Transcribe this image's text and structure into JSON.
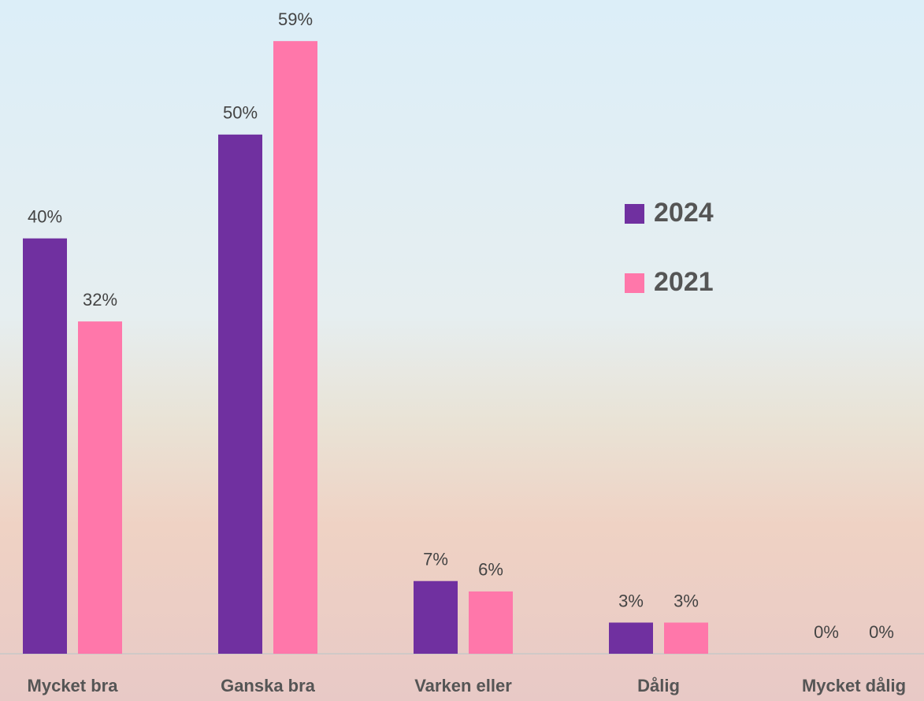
{
  "chart_data": {
    "type": "bar",
    "categories": [
      "Mycket bra",
      "Ganska bra",
      "Varken eller",
      "Dålig",
      "Mycket dålig"
    ],
    "series": [
      {
        "name": "2024",
        "color": "#7030a0",
        "values": [
          40,
          50,
          7,
          3,
          0
        ],
        "value_labels": [
          "40%",
          "50%",
          "7%",
          "3%",
          "0%"
        ]
      },
      {
        "name": "2021",
        "color": "#ff77aa",
        "values": [
          32,
          59,
          6,
          3,
          0
        ],
        "value_labels": [
          "32%",
          "59%",
          "6%",
          "3%",
          "0%"
        ]
      }
    ],
    "ylim": [
      0,
      60
    ],
    "legend": "right"
  }
}
